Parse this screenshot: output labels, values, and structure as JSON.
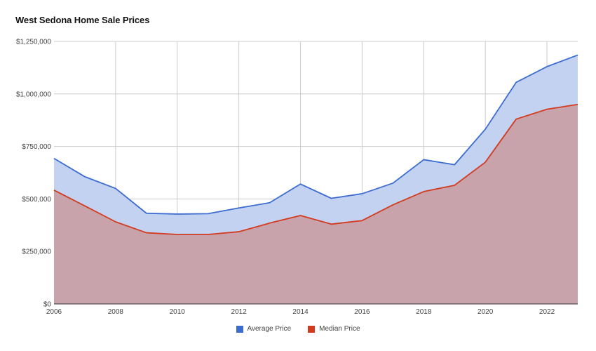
{
  "chart_data": {
    "type": "area",
    "title": "West Sedona Home Sale Prices",
    "xlabel": "",
    "ylabel": "",
    "x": [
      2006,
      2007,
      2008,
      2009,
      2010,
      2011,
      2012,
      2013,
      2014,
      2015,
      2016,
      2017,
      2018,
      2019,
      2020,
      2021,
      2022,
      2023
    ],
    "xlim": [
      2006,
      2023
    ],
    "ylim": [
      0,
      1250000
    ],
    "x_ticks": [
      2006,
      2008,
      2010,
      2012,
      2014,
      2016,
      2018,
      2020,
      2022
    ],
    "x_tick_labels": [
      "2006",
      "2008",
      "2010",
      "2012",
      "2014",
      "2016",
      "2018",
      "2020",
      "2022"
    ],
    "y_ticks": [
      0,
      250000,
      500000,
      750000,
      1000000,
      1250000
    ],
    "y_tick_labels": [
      "$0",
      "$250,000",
      "$500,000",
      "$750,000",
      "$1,000,000",
      "$1,250,000"
    ],
    "grid": true,
    "legend_position": "bottom",
    "series": [
      {
        "name": "Average Price",
        "color": "#3c6ccf",
        "fill": "#c3d2f1",
        "values": [
          693000,
          606000,
          550000,
          432000,
          428000,
          430000,
          457000,
          482000,
          571000,
          503000,
          525000,
          575000,
          687000,
          663000,
          832000,
          1055000,
          1130000,
          1185000
        ]
      },
      {
        "name": "Median Price",
        "color": "#d33b1f",
        "fill": "#c8a3ab",
        "values": [
          542000,
          467000,
          391000,
          339000,
          331000,
          331000,
          344000,
          385000,
          421000,
          380000,
          397000,
          472000,
          535000,
          565000,
          675000,
          880000,
          927000,
          950000
        ]
      }
    ]
  }
}
